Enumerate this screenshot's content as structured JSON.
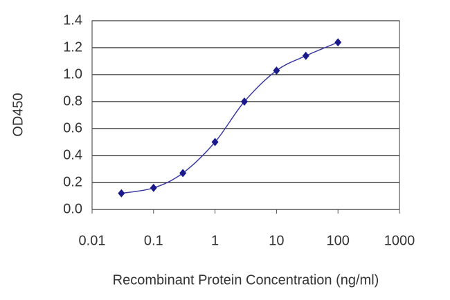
{
  "chart_data": {
    "type": "scatter",
    "x_label": "Recombinant Protein Concentration (ng/ml)",
    "y_label": "OD450",
    "xscale": "log",
    "x": [
      0.03,
      0.1,
      0.3,
      1,
      3,
      10,
      30,
      100
    ],
    "series": [
      {
        "color": "#1a1a8c",
        "values": [
          0.12,
          0.16,
          0.27,
          0.5,
          0.8,
          1.03,
          1.14,
          1.24
        ]
      }
    ],
    "line": true,
    "line_color": "#3a3aa0",
    "xlim": [
      0.01,
      1000
    ],
    "xticks": [
      0.01,
      0.1,
      1,
      10,
      100,
      1000
    ],
    "ylim": [
      0,
      1.4
    ],
    "yticks": [
      {
        "value": 0,
        "label": "0.0"
      },
      0.2,
      0.4,
      0.6,
      0.8,
      {
        "value": 1,
        "label": "1.0"
      },
      1.2,
      1.4
    ],
    "grid": true
  }
}
